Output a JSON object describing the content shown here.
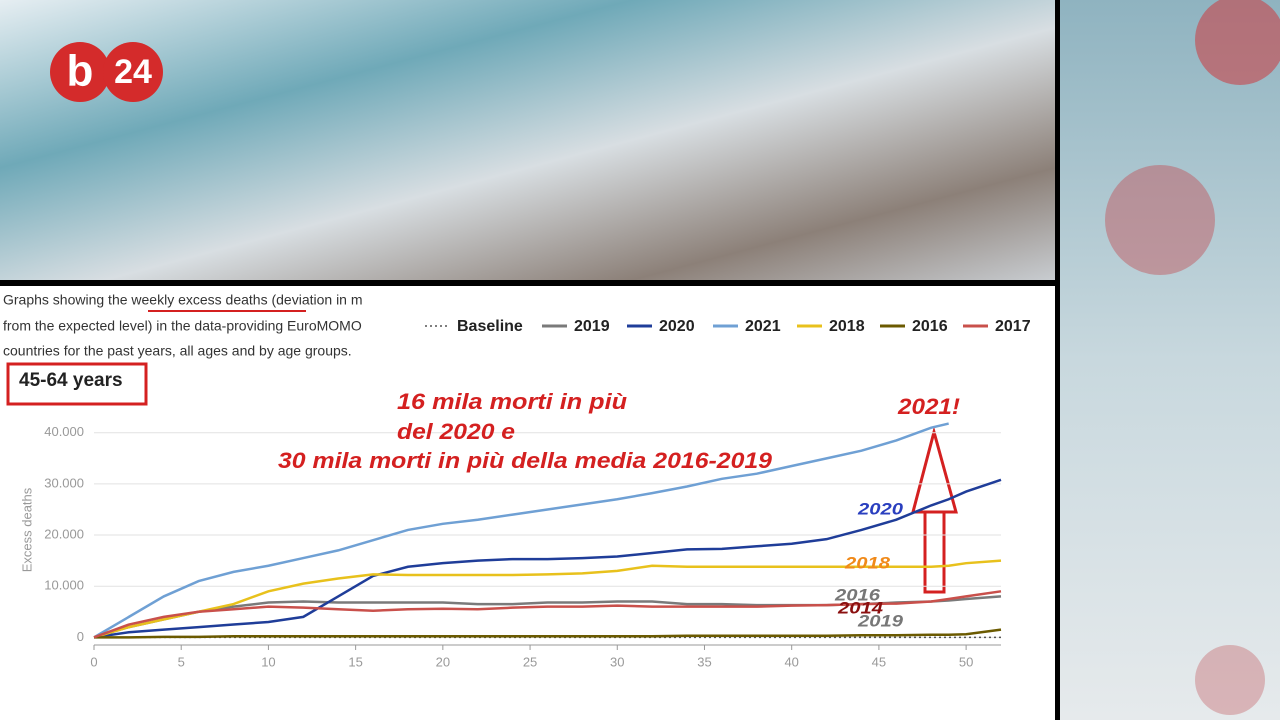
{
  "logo": [
    "b",
    "24"
  ],
  "caption": [
    "Graphs showing the weekly excess deaths (deviation in m",
    "from the expected level) in the data-providing EuroMOMO",
    "countries for the past years, all ages and by age groups."
  ],
  "age_group": "45-64 years",
  "chart_data": {
    "type": "line",
    "y_label": "Excess deaths",
    "x": [
      0,
      2,
      4,
      6,
      8,
      10,
      12,
      14,
      16,
      18,
      20,
      22,
      24,
      26,
      28,
      30,
      32,
      34,
      36,
      38,
      40,
      42,
      44,
      46,
      48,
      49,
      50,
      52
    ],
    "series": [
      {
        "name": "Baseline",
        "color": "#555555",
        "dash": true,
        "values": [
          0,
          0,
          0,
          0,
          0,
          0,
          0,
          0,
          0,
          0,
          0,
          0,
          0,
          0,
          0,
          0,
          0,
          0,
          0,
          0,
          0,
          0,
          0,
          0,
          0,
          0,
          0,
          0
        ]
      },
      {
        "name": "2019",
        "color": "#7a7a7a",
        "values": [
          0,
          2000,
          3500,
          5000,
          6000,
          6800,
          7000,
          6800,
          6800,
          6800,
          6800,
          6500,
          6500,
          6800,
          6800,
          7000,
          7000,
          6500,
          6500,
          6300,
          6300,
          6300,
          6500,
          6800,
          7000,
          7200,
          7500,
          8000
        ]
      },
      {
        "name": "2020",
        "color": "#1f3d99",
        "values": [
          0,
          1000,
          1500,
          2000,
          2500,
          3000,
          4000,
          8000,
          12000,
          13800,
          14500,
          15000,
          15300,
          15300,
          15500,
          15800,
          16500,
          17200,
          17300,
          17800,
          18300,
          19200,
          21000,
          23000,
          25800,
          27000,
          28500,
          30800
        ]
      },
      {
        "name": "2021",
        "color": "#6fa0d4",
        "values": [
          0,
          4000,
          8000,
          11000,
          12800,
          14000,
          15500,
          17000,
          19000,
          21000,
          22200,
          23000,
          24000,
          25000,
          26000,
          27000,
          28200,
          29500,
          31000,
          32000,
          33500,
          35000,
          36500,
          38500,
          41000,
          41800,
          null,
          null
        ]
      },
      {
        "name": "2018",
        "color": "#e8c11c",
        "values": [
          0,
          2000,
          3500,
          5000,
          6500,
          9000,
          10500,
          11500,
          12300,
          12200,
          12200,
          12200,
          12200,
          12300,
          12500,
          13000,
          14000,
          13800,
          13800,
          13800,
          13800,
          13800,
          13800,
          13800,
          13800,
          14000,
          14500,
          15000
        ]
      },
      {
        "name": "2016",
        "color": "#6b5a00",
        "values": [
          0,
          0,
          100,
          100,
          200,
          200,
          200,
          200,
          200,
          200,
          200,
          200,
          200,
          200,
          200,
          200,
          200,
          300,
          300,
          300,
          300,
          300,
          400,
          400,
          500,
          500,
          600,
          1500
        ]
      },
      {
        "name": "2017",
        "color": "#c9504b",
        "values": [
          0,
          2500,
          4000,
          5000,
          5500,
          6000,
          5800,
          5500,
          5200,
          5500,
          5600,
          5500,
          5800,
          6000,
          6000,
          6200,
          6000,
          6000,
          6000,
          6000,
          6200,
          6300,
          6500,
          6600,
          7000,
          7500,
          8000,
          9000
        ]
      }
    ],
    "xlim": [
      0,
      52
    ],
    "xticks": [
      0,
      5,
      10,
      15,
      20,
      25,
      30,
      35,
      40,
      45,
      50
    ],
    "ylim": [
      -1500,
      42500
    ],
    "yticks": [
      0,
      {
        "value": 10000,
        "label": "10.000"
      },
      {
        "value": 20000,
        "label": "20.000"
      },
      {
        "value": 30000,
        "label": "30.000"
      },
      {
        "value": 40000,
        "label": "40.000"
      }
    ],
    "grid": true,
    "annotations": [
      "16 mila morti in più",
      "del 2020 e",
      "30 mila morti in più della media 2016-2019",
      "2021!",
      "2020",
      "2018",
      "2016",
      "2014",
      "2019"
    ]
  }
}
